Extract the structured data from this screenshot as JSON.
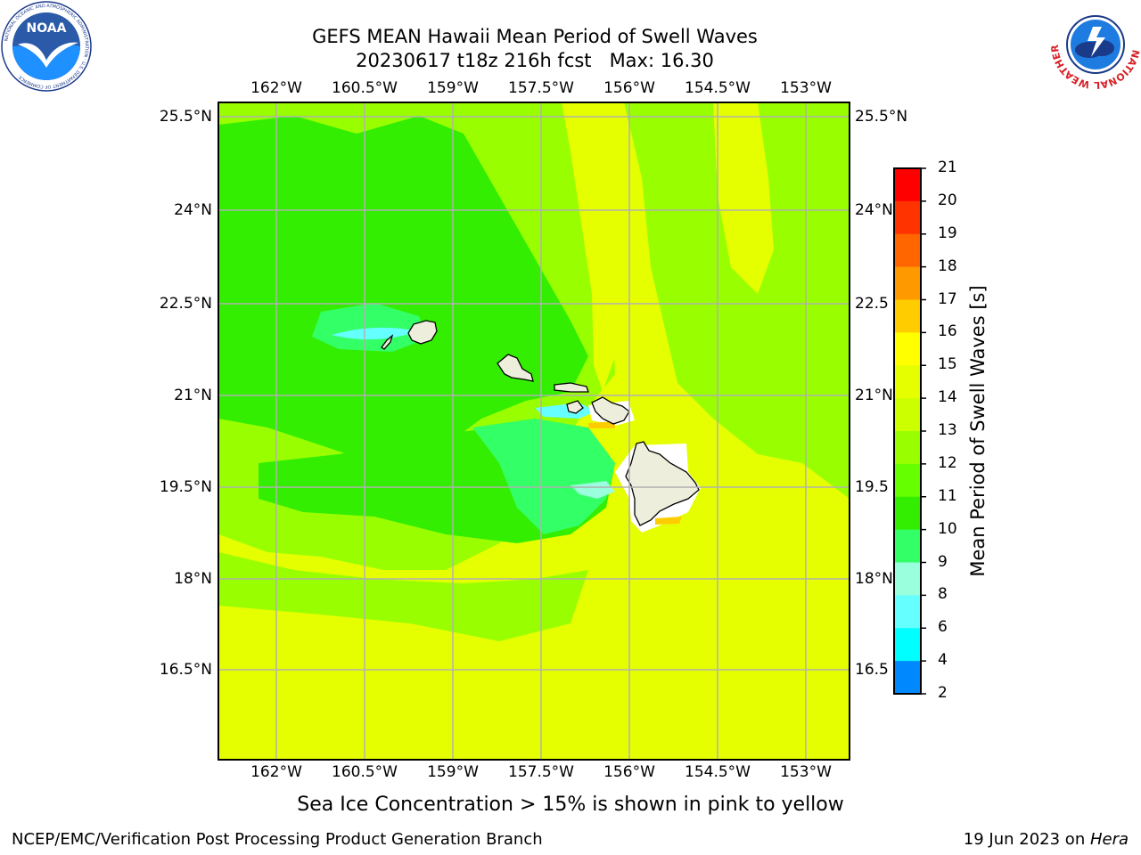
{
  "title": {
    "line1": "GEFS MEAN Hawaii Mean Period of Swell Waves",
    "line2": "20230617 t18z 216h fcst   Max: 16.30"
  },
  "map": {
    "lon_labels": [
      "162°W",
      "160.5°W",
      "159°W",
      "157.5°W",
      "156°W",
      "154.5°W",
      "153°W"
    ],
    "lat_labels": [
      "25.5°N",
      "24°N",
      "22.5°N",
      "21°N",
      "19.5°N",
      "18°N",
      "16.5°N"
    ],
    "lat_labels_right": [
      "25.5°N",
      "24°N",
      "22.5",
      "21°N",
      "19.5",
      "18°N",
      "16.5"
    ]
  },
  "colorbar": {
    "label": "Mean Period of Swell Waves [s]",
    "ticks": [
      "21",
      "20",
      "19",
      "18",
      "17",
      "16",
      "15",
      "14",
      "13",
      "12",
      "11",
      "10",
      "9",
      "8",
      "6",
      "4",
      "2"
    ],
    "colors": [
      "#ff0000",
      "#ff3300",
      "#ff6600",
      "#ff9900",
      "#ffcc00",
      "#ffff00",
      "#e6ff00",
      "#ccff00",
      "#99ff00",
      "#66ff00",
      "#33ee00",
      "#33ff66",
      "#99ffdd",
      "#66ffff",
      "#00ffff",
      "#0088ff",
      "#0000ff"
    ]
  },
  "colors": {
    "field_yellow": "#e6ff00",
    "field_lime": "#99ff00",
    "field_green": "#33ee00",
    "field_bright_green": "#33ff66",
    "field_cyan": "#66ffff",
    "land": "#eeeedd",
    "grid": "#b0b0b0"
  },
  "logos": {
    "noaa": {
      "text": "NOAA",
      "ring_text": "NATIONAL OCEANIC AND ATMOSPHERIC ADMINISTRATION · U.S. DEPARTMENT OF COMMERCE"
    },
    "nws": {
      "ring_text": "NATIONAL WEATHER SERVICE"
    }
  },
  "note": "Sea Ice Concentration > 15% is shown in pink to yellow",
  "footer": {
    "left": "NCEP/EMC/Verification Post Processing Product Generation Branch",
    "date": "19 Jun 2023 on ",
    "machine": "Hera"
  }
}
